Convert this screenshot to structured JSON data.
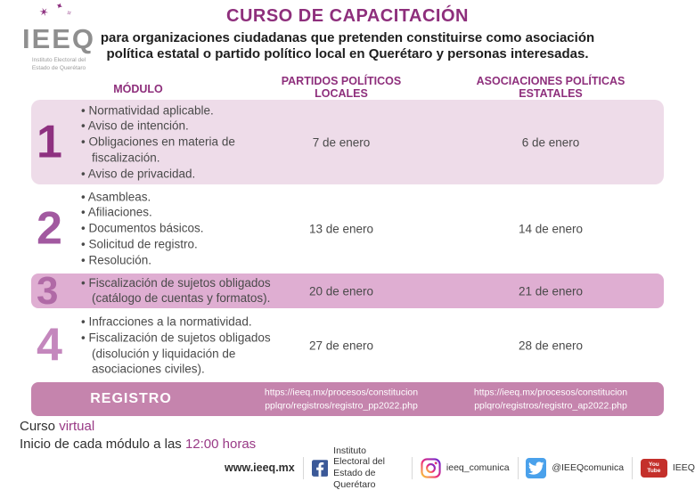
{
  "header": {
    "logo_text": "IEEQ",
    "logo_sub_line1": "Instituto Electoral del",
    "logo_sub_line2": "Estado de Querétaro",
    "title": "CURSO DE CAPACITACIÓN",
    "subtitle_line1": "para organizaciones ciudadanas que pretenden constituirse como asociación",
    "subtitle_line2": "política estatal o partido político local en Querétaro y personas interesadas."
  },
  "table": {
    "headers": {
      "modulo": "MÓDULO",
      "col2_line1": "PARTIDOS POLÍTICOS",
      "col2_line2": "LOCALES",
      "col3_line1": "ASOCIACIONES POLÍTICAS",
      "col3_line2": "ESTATALES"
    },
    "rows": [
      {
        "number": "1",
        "topics": [
          "Normatividad aplicable.",
          "Aviso de intención.",
          "Obligaciones en materia de fiscalización.",
          "Aviso de privacidad."
        ],
        "date_pp": "7 de enero",
        "date_ap": "6 de enero"
      },
      {
        "number": "2",
        "topics": [
          "Asambleas.",
          "Afiliaciones.",
          "Documentos básicos.",
          "Solicitud de registro.",
          "Resolución."
        ],
        "date_pp": "13 de enero",
        "date_ap": "14 de enero"
      },
      {
        "number": "3",
        "topics": [
          "Fiscalización de sujetos obligados (catálogo de cuentas y formatos)."
        ],
        "date_pp": "20 de enero",
        "date_ap": "21 de enero"
      },
      {
        "number": "4",
        "topics": [
          "Infracciones a la normatividad.",
          "Fiscalización de sujetos obligados (disolución y liquidación de asociaciones civiles)."
        ],
        "date_pp": "27 de enero",
        "date_ap": "28 de enero"
      }
    ],
    "registro": {
      "label": "REGISTRO",
      "url_pp_line1": "https://ieeq.mx/procesos/constitucion",
      "url_pp_line2": "pplqro/registros/registro_pp2022.php",
      "url_ap_line1": "https://ieeq.mx/procesos/constitucion",
      "url_ap_line2": "pplqro/registros/registro_ap2022.php"
    }
  },
  "notes": {
    "curso_prefix": "Curso ",
    "curso_mode": "virtual",
    "inicio_prefix": "Inicio de cada módulo a las ",
    "inicio_time": "12:00 horas"
  },
  "social": {
    "website": "www.ieeq.mx",
    "facebook_line1": "Instituto Electoral del",
    "facebook_line2": "Estado de Querétaro",
    "instagram": "ieeq_comunica",
    "twitter": "@IEEQcomunica",
    "youtube": "IEEQ",
    "youtube_icon_line1": "You",
    "youtube_icon_line2": "Tube"
  },
  "colors": {
    "brand_magenta": "#8e2f7c",
    "row_pink_light": "#eedce9",
    "row_pink_medium": "#dfaed2",
    "registro_mauve": "#c584ad",
    "accent_text": "#993a86",
    "facebook_blue": "#3b5998",
    "twitter_blue": "#4aa1eb",
    "youtube_red": "#c4302b"
  }
}
